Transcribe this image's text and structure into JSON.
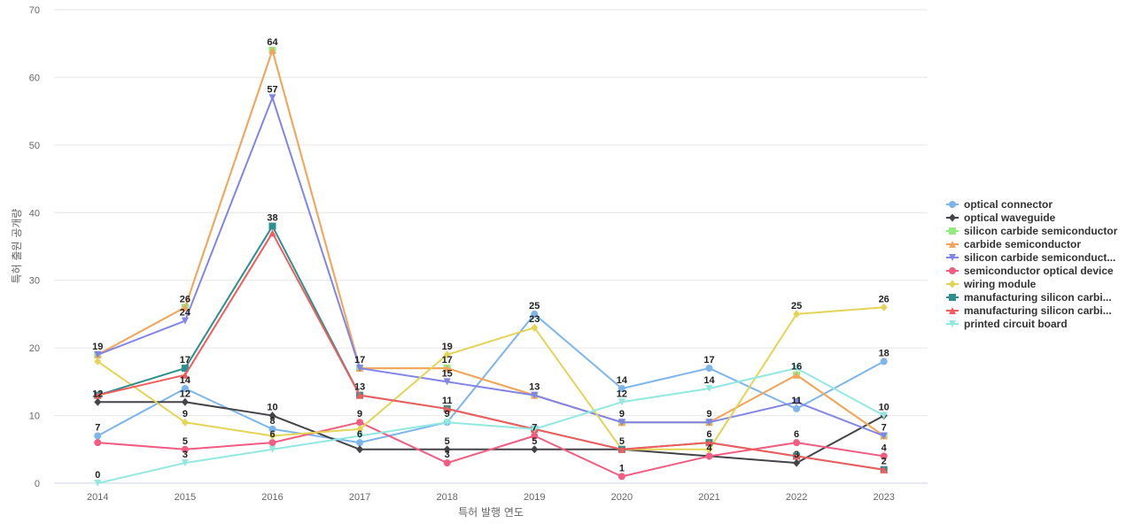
{
  "chart_data": {
    "type": "line",
    "xlabel": "특허 발행 연도",
    "ylabel": "특허 출원 공개량",
    "ylim": [
      0,
      70
    ],
    "yticks": [
      0,
      10,
      20,
      30,
      40,
      50,
      60,
      70
    ],
    "grid": true,
    "legend_position": "right",
    "categories": [
      "2014",
      "2015",
      "2016",
      "2017",
      "2018",
      "2019",
      "2020",
      "2021",
      "2022",
      "2023"
    ],
    "series": [
      {
        "name": "optical connector",
        "legend_label": "optical connector",
        "color": "#7cb5ec",
        "marker": "circle",
        "values": [
          7,
          14,
          8,
          6,
          9,
          25,
          14,
          17,
          11,
          18
        ]
      },
      {
        "name": "optical waveguide",
        "legend_label": "optical waveguide",
        "color": "#434348",
        "marker": "diamond",
        "values": [
          12,
          12,
          10,
          5,
          5,
          5,
          5,
          4,
          3,
          10
        ]
      },
      {
        "name": "silicon carbide semiconductor",
        "legend_label": "silicon carbide semiconductor",
        "color": "#90ed7d",
        "marker": "square",
        "values": [
          19,
          26,
          64,
          17,
          17,
          13,
          9,
          9,
          16,
          7
        ]
      },
      {
        "name": "carbide semiconductor",
        "legend_label": "carbide semiconductor",
        "color": "#f7a35c",
        "marker": "triangle",
        "values": [
          19,
          26,
          64,
          17,
          17,
          13,
          9,
          9,
          16,
          7
        ]
      },
      {
        "name": "silicon carbide semiconductor",
        "legend_label": "silicon carbide semiconduct...",
        "color": "#8085e9",
        "marker": "triangle-down",
        "values": [
          19,
          24,
          57,
          17,
          15,
          13,
          9,
          9,
          12,
          7
        ]
      },
      {
        "name": "semiconductor optical device",
        "legend_label": "semiconductor optical device",
        "color": "#f15c80",
        "marker": "circle",
        "values": [
          6,
          5,
          6,
          9,
          3,
          7,
          1,
          4,
          6,
          4
        ]
      },
      {
        "name": "wiring module",
        "legend_label": "wiring module",
        "color": "#e4d354",
        "marker": "diamond",
        "values": [
          18,
          9,
          7,
          8,
          19,
          23,
          5,
          5,
          25,
          26
        ]
      },
      {
        "name": "manufacturing silicon carbide",
        "legend_label": "manufacturing silicon carbi...",
        "color": "#2b908f",
        "marker": "square",
        "values": [
          13,
          17,
          38,
          13,
          11,
          8,
          5,
          6,
          4,
          2
        ]
      },
      {
        "name": "manufacturing silicon carbide",
        "legend_label": "manufacturing silicon carbi...",
        "color": "#f45b5b",
        "marker": "triangle",
        "values": [
          13,
          16,
          37,
          13,
          11,
          8,
          5,
          6,
          4,
          2
        ]
      },
      {
        "name": "printed circuit board",
        "legend_label": "printed circuit board",
        "color": "#91e8e1",
        "marker": "triangle-down",
        "values": [
          0,
          3,
          5,
          7,
          9,
          8,
          12,
          14,
          17,
          10
        ]
      }
    ],
    "data_labels": [
      {
        "year": "2014",
        "labels": [
          19,
          12,
          7,
          0
        ]
      },
      {
        "year": "2015",
        "labels": [
          26,
          24,
          17,
          14,
          12,
          9,
          5,
          3
        ]
      },
      {
        "year": "2016",
        "labels": [
          64,
          57,
          38,
          10,
          8,
          6
        ]
      },
      {
        "year": "2017",
        "labels": [
          17,
          13,
          9,
          6
        ]
      },
      {
        "year": "2018",
        "labels": [
          19,
          17,
          15,
          11,
          9,
          5,
          3
        ]
      },
      {
        "year": "2019",
        "labels": [
          25,
          23,
          13,
          7,
          5
        ]
      },
      {
        "year": "2020",
        "labels": [
          14,
          12,
          9,
          5,
          1
        ]
      },
      {
        "year": "2021",
        "labels": [
          17,
          14,
          9,
          6,
          4
        ]
      },
      {
        "year": "2022",
        "labels": [
          25,
          16,
          11,
          6,
          3
        ]
      },
      {
        "year": "2023",
        "labels": [
          26,
          18,
          10,
          7,
          4,
          2
        ]
      }
    ]
  }
}
